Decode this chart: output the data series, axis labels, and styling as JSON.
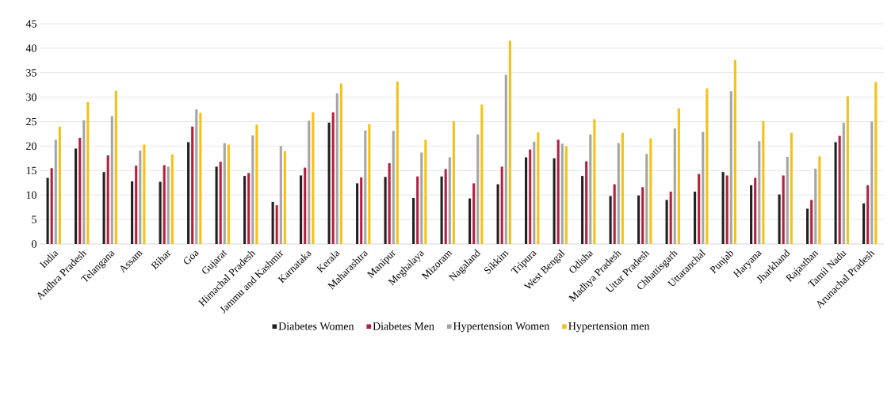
{
  "chart_data": {
    "type": "bar",
    "categories": [
      "India",
      "Andhra Pradesh",
      "Telangana",
      "Assam",
      "Bihar",
      "Goa",
      "Gujarat",
      "Himachal Pradesh",
      "Jammu and Kashmir",
      "Karnataka",
      "Kerala",
      "Maharashtra",
      "Manipur",
      "Meghalaya",
      "Mizoram",
      "Nagaland",
      "Sikkim",
      "Tripura",
      "West Bengal",
      "Odisha",
      "Madhya Pradesh",
      "Uttar Pradesh",
      "Chhattisgarh",
      "Uttaranchal",
      "Punjab",
      "Haryana",
      "Jharkhand",
      "Rajasthan",
      "Tamil Nadu",
      "Arunachal Pradesh"
    ],
    "series": [
      {
        "name": "Diabetes Women",
        "color": "#231f20",
        "values": [
          13.5,
          19.5,
          14.7,
          12.8,
          12.7,
          20.8,
          15.8,
          13.9,
          8.6,
          14,
          24.8,
          12.4,
          13.7,
          9.4,
          13.8,
          9.3,
          12.2,
          17.7,
          17.5,
          13.9,
          9.8,
          9.9,
          9.0,
          10.7,
          14.7,
          12,
          10.1,
          7.2,
          20.8,
          8.3
        ]
      },
      {
        "name": "Diabetes Men",
        "color": "#b5203f",
        "values": [
          15.5,
          21.7,
          18.1,
          16,
          16.1,
          24,
          16.8,
          14.5,
          7.9,
          15.6,
          26.9,
          13.6,
          16.5,
          13.8,
          15.3,
          12.4,
          15.8,
          19.3,
          21.3,
          16.9,
          12.2,
          11.6,
          10.7,
          14.3,
          14,
          13.5,
          14,
          9,
          22.1,
          12
        ]
      },
      {
        "name": "Hypertension Women",
        "color": "#a5a5a5",
        "values": [
          21.3,
          25.3,
          26.1,
          19.1,
          15.8,
          27.5,
          20.6,
          22.2,
          20,
          25.2,
          30.8,
          23.2,
          23.1,
          18.7,
          17.7,
          22.4,
          34.6,
          20.9,
          20.5,
          22.4,
          20.6,
          18.4,
          23.6,
          22.9,
          31.2,
          21,
          17.8,
          15.4,
          24.8,
          25
        ]
      },
      {
        "name": "Hypertension men",
        "color": "#f5c116",
        "values": [
          24,
          29,
          31.3,
          20.3,
          18.3,
          26.8,
          20.3,
          24.4,
          19,
          26.9,
          32.8,
          24.5,
          33.2,
          21.3,
          25.1,
          28.5,
          41.5,
          22.8,
          20,
          25.5,
          22.7,
          21.6,
          27.7,
          31.8,
          37.6,
          25.1,
          22.7,
          17.9,
          30.2,
          33.1
        ]
      }
    ],
    "ylim": [
      0,
      45
    ],
    "yticks": [
      0,
      5,
      10,
      15,
      20,
      25,
      30,
      35,
      40,
      45
    ],
    "grid": "y",
    "legend": "bottom"
  }
}
